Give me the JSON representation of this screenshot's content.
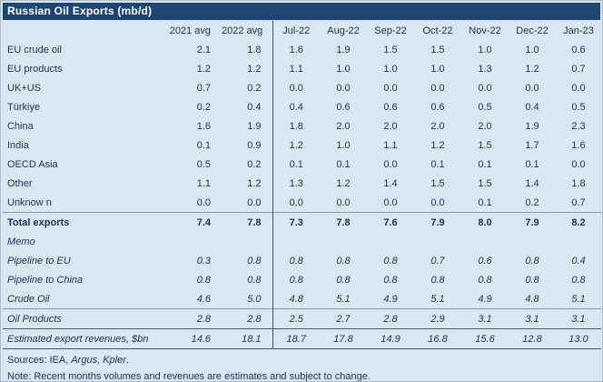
{
  "title": "Russian Oil Exports (mb/d)",
  "chart_data": {
    "type": "table",
    "title": "Russian Oil Exports (mb/d)",
    "unit": "mb/d",
    "columns": [
      "2021 avg",
      "2022 avg",
      "Jul-22",
      "Aug-22",
      "Sep-22",
      "Oct-22",
      "Nov-22",
      "Dec-22",
      "Jan-23"
    ],
    "rows": [
      {
        "label": "EU crude oil",
        "style": "normal",
        "values": [
          "2.1",
          "1.8",
          "1.6",
          "1.9",
          "1.5",
          "1.5",
          "1.0",
          "1.0",
          "0.6"
        ]
      },
      {
        "label": "EU products",
        "style": "normal",
        "values": [
          "1.2",
          "1.2",
          "1.1",
          "1.0",
          "1.0",
          "1.0",
          "1.3",
          "1.2",
          "0.7"
        ]
      },
      {
        "label": "UK+US",
        "style": "normal",
        "values": [
          "0.7",
          "0.2",
          "0.0",
          "0.0",
          "0.0",
          "0.0",
          "0.0",
          "0.0",
          "0.0"
        ]
      },
      {
        "label": "Türkiye",
        "style": "normal",
        "values": [
          "0.2",
          "0.4",
          "0.4",
          "0.6",
          "0.6",
          "0.6",
          "0.5",
          "0.4",
          "0.5"
        ]
      },
      {
        "label": "China",
        "style": "normal",
        "values": [
          "1.6",
          "1.9",
          "1.8",
          "2.0",
          "2.0",
          "2.0",
          "2.0",
          "1.9",
          "2.3"
        ]
      },
      {
        "label": "India",
        "style": "normal",
        "values": [
          "0.1",
          "0.9",
          "1.2",
          "1.0",
          "1.1",
          "1.2",
          "1.5",
          "1.7",
          "1.6"
        ]
      },
      {
        "label": "OECD Asia",
        "style": "normal",
        "values": [
          "0.5",
          "0.2",
          "0.1",
          "0.1",
          "0.0",
          "0.1",
          "0.1",
          "0.1",
          "0.0"
        ]
      },
      {
        "label": "Other",
        "style": "normal",
        "values": [
          "1.1",
          "1.2",
          "1.3",
          "1.2",
          "1.4",
          "1.5",
          "1.5",
          "1.4",
          "1.8"
        ]
      },
      {
        "label": "Unknow n",
        "style": "normal",
        "values": [
          "0.0",
          "0.0",
          "0.0",
          "0.0",
          "0.0",
          "0.0",
          "0.1",
          "0.2",
          "0.7"
        ]
      },
      {
        "label": "Total exports",
        "style": "bold",
        "rule_above": "faint",
        "values": [
          "7.4",
          "7.8",
          "7.3",
          "7.8",
          "7.6",
          "7.9",
          "8.0",
          "7.9",
          "8.2"
        ]
      },
      {
        "label": "Memo",
        "style": "italic",
        "values": []
      },
      {
        "label": "Pipeline to EU",
        "style": "italic",
        "values": [
          "0.3",
          "0.8",
          "0.8",
          "0.8",
          "0.8",
          "0.7",
          "0.6",
          "0.8",
          "0.4"
        ]
      },
      {
        "label": "Pipeline to China",
        "style": "italic",
        "values": [
          "0.8",
          "0.8",
          "0.8",
          "0.8",
          "0.8",
          "0.8",
          "0.8",
          "0.8",
          "0.8"
        ]
      },
      {
        "label": "Crude Oil",
        "style": "italic",
        "values": [
          "4.6",
          "5.0",
          "4.8",
          "5.1",
          "4.9",
          "5.1",
          "4.9",
          "4.8",
          "5.1"
        ]
      },
      {
        "label": "Oil Products",
        "style": "italic",
        "rule_above": "faint",
        "values": [
          "2.8",
          "2.8",
          "2.5",
          "2.7",
          "2.8",
          "2.9",
          "3.1",
          "3.1",
          "3.1"
        ]
      },
      {
        "label": "Estimated export revenues, $bn",
        "style": "italic",
        "rule_above": "strong",
        "rule_below": "strong",
        "values": [
          "14.6",
          "18.1",
          "18.7",
          "17.8",
          "14.9",
          "16.8",
          "15.6",
          "12.8",
          "13.0"
        ]
      }
    ]
  },
  "footer": {
    "sources_prefix": "Sources: IEA,",
    "source_italic_1": "Argus,",
    "source_italic_2": "Kpler",
    "sources_suffix": ".",
    "note": "Note: Recent months volumes and revenues are estimates and subject to change."
  },
  "colors": {
    "titlebar_bg": "#1f4673",
    "titlebar_text": "#ffffff",
    "panel_bg": "#dae6f1",
    "text": "#22344e",
    "rule_strong": "#42505f",
    "rule_faint": "#8a98a8"
  }
}
